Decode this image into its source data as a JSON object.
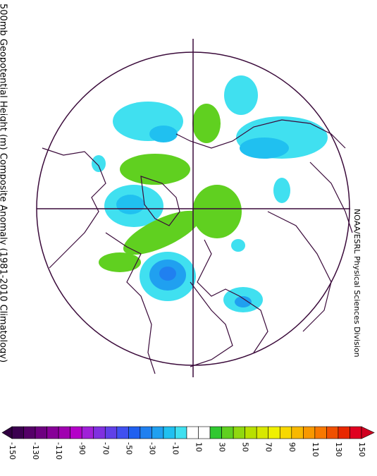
{
  "map": {
    "title": "500mb Geopotential Height (m) Composite Anomaly (1981-2010 Climatology)",
    "credit": "NOAA/ESRL Physical Sciences Division",
    "colorbar": {
      "labels": [
        -150,
        -130,
        -110,
        -90,
        -70,
        -50,
        -30,
        -10,
        10,
        30,
        50,
        70,
        90,
        110,
        130,
        150
      ],
      "colors": [
        "#3c0050",
        "#550068",
        "#6e0080",
        "#870098",
        "#a000b0",
        "#b400c8",
        "#a020d8",
        "#8030e0",
        "#6040e8",
        "#4050f0",
        "#2060f0",
        "#2080f0",
        "#20a0f0",
        "#20c0f0",
        "#40e0f0",
        "#ffffff",
        "#ffffff",
        "#30c830",
        "#60d020",
        "#90d810",
        "#b8e000",
        "#d8e800",
        "#f0f000",
        "#f8d800",
        "#f8b800",
        "#f89800",
        "#f87800",
        "#f05000",
        "#e82800",
        "#e00020"
      ],
      "under_color": "#300040",
      "over_color": "#d00020"
    }
  }
}
